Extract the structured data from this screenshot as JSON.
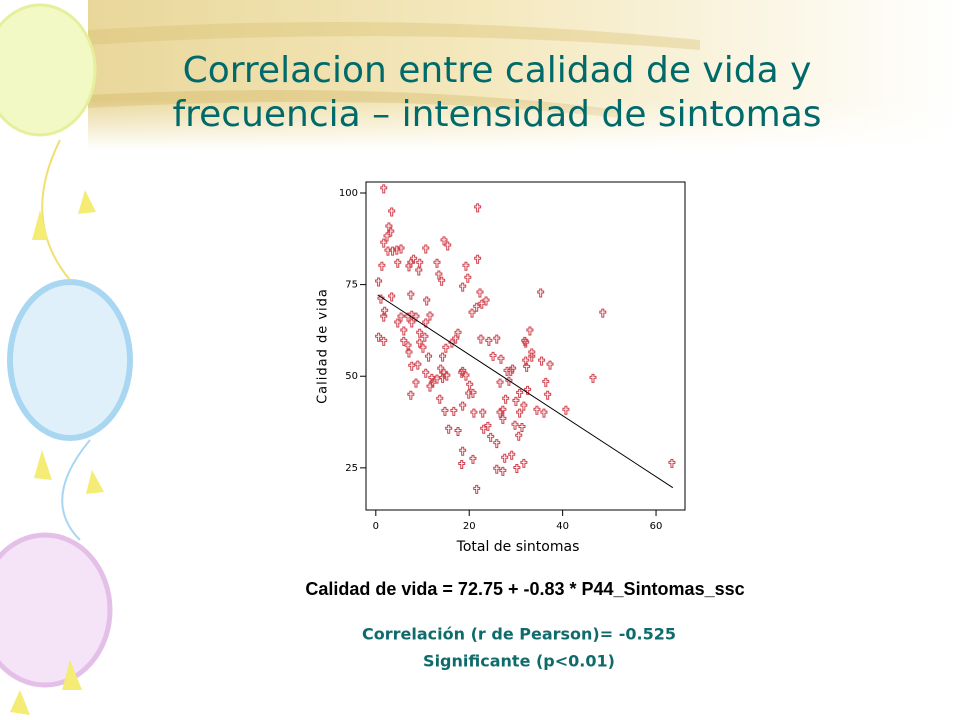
{
  "chart_data": {
    "type": "scatter",
    "title": [
      "Correlacion entre calidad de vida y",
      "frecuencia – intensidad de sintomas"
    ],
    "x_label": "Total de sintomas",
    "y_label": "Calidad de vida",
    "equation": "Calidad de vida = 72.75 + -0.83 * P44_Sintomas_ssc",
    "annotations": [
      "Correlación (r de Pearson)= -0.525",
      "Significante (p<0.01)"
    ],
    "color": "#d0404c",
    "xlim": [
      -2.1,
      66.2
    ],
    "ylim": [
      13.5,
      103
    ],
    "xticks": [
      0,
      20,
      40,
      60
    ],
    "yticks": [
      25,
      50,
      75,
      100
    ],
    "x": [
      1.7,
      3.4,
      2.8,
      3.2,
      2.4,
      1.7,
      2.6,
      3.6,
      4.5,
      5.4,
      1.3,
      4.7,
      0.6,
      3.4,
      1.9,
      1.7,
      1.1,
      0.6,
      1.7,
      4.7,
      6.0,
      5.4,
      6.9,
      7.7,
      8.6,
      7.5,
      8.1,
      7.1,
      9.2,
      9.4,
      10.7,
      13.1,
      13.5,
      14.1,
      14.6,
      15.4,
      6.0,
      6.9,
      7.1,
      7.7,
      9.4,
      10.5,
      11.6,
      7.5,
      10.9,
      10.7,
      7.7,
      9.0,
      10.7,
      8.6,
      7.5,
      12.0,
      9.4,
      10.1,
      11.3,
      11.6,
      12.2,
      13.1,
      13.9,
      14.3,
      15.0,
      16.3,
      17.1,
      17.6,
      14.3,
      15.2,
      14.6,
      13.7,
      14.8,
      15.6,
      16.7,
      17.6,
      18.4,
      18.6,
      18.6,
      18.6,
      19.3,
      20.1,
      18.4,
      19.9,
      20.8,
      21.0,
      20.6,
      21.6,
      22.7,
      23.6,
      22.3,
      22.5,
      24.2,
      25.1,
      26.8,
      25.9,
      21.8,
      21.8,
      19.3,
      19.7,
      18.6,
      21.6,
      20.8,
      22.9,
      24.0,
      23.1,
      24.6,
      25.9,
      26.6,
      26.6,
      27.2,
      27.8,
      28.5,
      28.9,
      29.3,
      29.8,
      30.0,
      30.8,
      31.7,
      31.9,
      33.0,
      33.4,
      32.1,
      32.1,
      32.3,
      30.8,
      31.3,
      31.7,
      30.6,
      30.2,
      29.1,
      27.6,
      27.2,
      25.9,
      32.5,
      34.5,
      36.0,
      36.4,
      37.3,
      35.3,
      33.4,
      35.5,
      36.8,
      40.7,
      46.5,
      48.6,
      63.4,
      27.2,
      28.1
    ],
    "y": [
      101.4,
      95.1,
      91.0,
      89.6,
      88.3,
      86.6,
      84.4,
      84.4,
      84.7,
      85.0,
      80.3,
      81.1,
      76.0,
      71.9,
      68.0,
      66.4,
      71.3,
      60.9,
      59.8,
      64.8,
      62.6,
      66.4,
      66.4,
      66.9,
      66.4,
      81.1,
      82.2,
      80.1,
      79.0,
      81.1,
      85.0,
      81.1,
      77.9,
      76.2,
      87.2,
      85.8,
      59.8,
      58.5,
      56.6,
      64.8,
      62.0,
      60.9,
      66.7,
      72.4,
      70.8,
      64.8,
      53.0,
      53.3,
      51.1,
      48.4,
      45.1,
      49.7,
      59.3,
      57.9,
      55.5,
      47.3,
      48.4,
      49.5,
      52.2,
      55.5,
      57.9,
      59.3,
      60.4,
      62.0,
      49.7,
      50.3,
      51.1,
      44.0,
      40.7,
      35.8,
      40.7,
      35.2,
      26.2,
      29.8,
      42.1,
      51.6,
      50.3,
      47.8,
      51.1,
      45.4,
      45.6,
      40.2,
      67.5,
      69.1,
      69.9,
      70.8,
      73.0,
      60.4,
      59.8,
      55.7,
      54.9,
      60.4,
      96.2,
      82.2,
      80.3,
      77.0,
      74.6,
      19.4,
      27.6,
      40.2,
      36.6,
      35.8,
      33.6,
      31.9,
      40.2,
      48.4,
      38.5,
      44.0,
      48.9,
      51.6,
      52.2,
      36.9,
      43.4,
      45.6,
      42.1,
      59.8,
      62.6,
      56.6,
      59.3,
      54.4,
      52.7,
      40.2,
      36.3,
      26.5,
      33.9,
      25.1,
      28.7,
      27.9,
      24.3,
      24.9,
      46.4,
      41.0,
      40.2,
      48.6,
      53.3,
      73.0,
      55.5,
      54.4,
      45.1,
      41.0,
      49.7,
      67.5,
      26.5,
      41.0,
      51.6
    ],
    "fit_line": {
      "x": [
        0.4,
        63.6
      ],
      "y": [
        72.2,
        19.6
      ]
    }
  }
}
